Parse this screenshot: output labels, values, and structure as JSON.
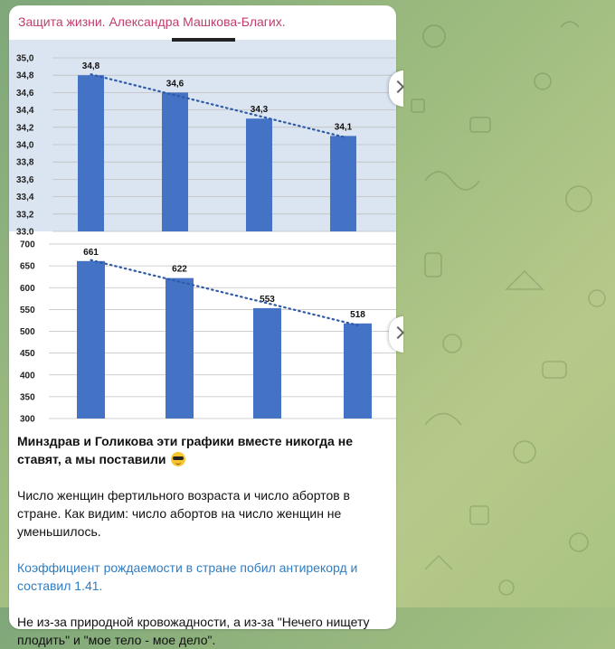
{
  "message": {
    "sender": "Защита жизни. Александра Машкова-Благих.",
    "paragraphs": [
      "Минздрав и Голикова эти графики вместе никогда не ставят, а мы поставили",
      "Число женщин фертильного возраста и число абортов в стране. Как видим: число абортов на число женщин не уменьшилось.",
      "Коэффициент рождаемости в стране побил антирекорд и составил 1.41.",
      "Не из-за природной кровожадности, а из-за \"Нечего нищету плодить\" и \"мое тело - мое дело\"."
    ],
    "emoji": "smiling-face-with-sunglasses"
  },
  "chart_data": [
    {
      "type": "bar",
      "title": "",
      "categories": [
        "",
        "",
        "",
        ""
      ],
      "values": [
        34.8,
        34.6,
        34.3,
        34.1
      ],
      "data_labels": [
        "34,8",
        "34,6",
        "34,3",
        "34,1"
      ],
      "y_ticks": [
        "33,0",
        "33,2",
        "33,4",
        "33,6",
        "33,8",
        "34,0",
        "34,2",
        "34,4",
        "34,6",
        "34,8",
        "35,0"
      ],
      "ylim": [
        33.0,
        35.0
      ],
      "trendline": "dotted-linear",
      "bar_color": "#4472c4",
      "trend_color": "#2e5aa8",
      "background": "#dbe5f1",
      "grid": true
    },
    {
      "type": "bar",
      "title": "",
      "categories": [
        "",
        "",
        "",
        ""
      ],
      "values": [
        661,
        622,
        553,
        518
      ],
      "data_labels": [
        "661",
        "622",
        "553",
        "518"
      ],
      "y_ticks": [
        "300",
        "350",
        "400",
        "450",
        "500",
        "550",
        "600",
        "650",
        "700"
      ],
      "ylim": [
        300,
        700
      ],
      "trendline": "dotted-linear",
      "bar_color": "#4472c4",
      "trend_color": "#2e5aa8",
      "background": "#ffffff",
      "grid": true
    }
  ],
  "colors": {
    "sender": "#c03d6f",
    "link": "#2f7dc2"
  }
}
